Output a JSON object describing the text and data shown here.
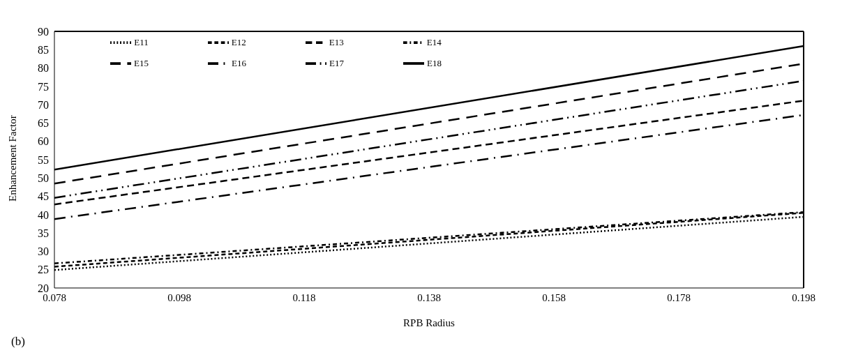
{
  "chart_data": {
    "type": "line",
    "xlabel": "RPB Radius",
    "ylabel": "Enhancement Factor",
    "x": [
      0.078,
      0.198
    ],
    "xlim": [
      0.078,
      0.198
    ],
    "xticks": [
      0.078,
      0.098,
      0.118,
      0.138,
      0.158,
      0.178,
      0.198
    ],
    "ylim": [
      20,
      90
    ],
    "yticks": [
      20,
      25,
      30,
      35,
      40,
      45,
      50,
      55,
      60,
      65,
      70,
      75,
      80,
      85,
      90
    ],
    "grid": false,
    "legend": "top left",
    "marker": "none",
    "annotations": [
      "(b)"
    ],
    "series": [
      {
        "name": "E11",
        "color": "#000000",
        "line_style": "dotted",
        "values": [
          24.9,
          39.4
        ]
      },
      {
        "name": "E12",
        "color": "#000000",
        "line_style": "dashed",
        "values": [
          25.8,
          40.5
        ]
      },
      {
        "name": "E13",
        "color": "#000000",
        "line_style": "dashed",
        "values": [
          42.8,
          71.1
        ]
      },
      {
        "name": "E14",
        "color": "#000000",
        "line_style": "dashed",
        "values": [
          26.7,
          40.7
        ]
      },
      {
        "name": "E15",
        "color": "#000000",
        "line_style": "dashed",
        "values": [
          48.5,
          81.2
        ]
      },
      {
        "name": "E16",
        "color": "#000000",
        "line_style": "dashed",
        "values": [
          38.8,
          67.2
        ]
      },
      {
        "name": "E17",
        "color": "#000000",
        "line_style": "dashed",
        "values": [
          44.6,
          76.5
        ]
      },
      {
        "name": "E18",
        "color": "#000000",
        "line_style": "solid",
        "values": [
          52.3,
          86.0
        ]
      }
    ]
  }
}
